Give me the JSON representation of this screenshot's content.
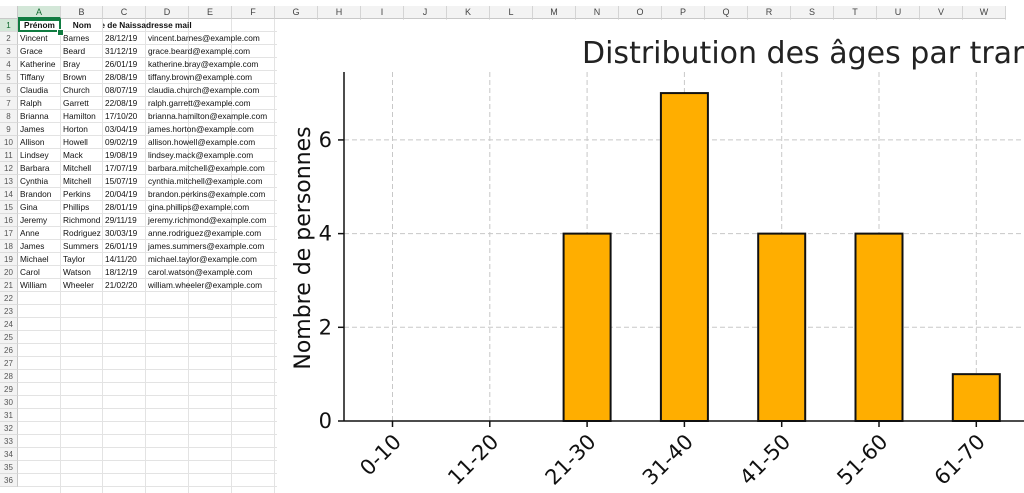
{
  "sheet": {
    "columns": [
      "A",
      "B",
      "C",
      "D",
      "E",
      "F",
      "G",
      "H",
      "I",
      "J",
      "K",
      "L",
      "M",
      "N",
      "O",
      "P",
      "Q",
      "R",
      "S",
      "T",
      "U",
      "V",
      "W"
    ],
    "selected_column": "A",
    "header": [
      "Prénom",
      "Nom",
      "e de Naissa",
      "dresse mail"
    ],
    "rows": [
      [
        "Vincent",
        "Barnes",
        "28/12/19",
        "vincent.barnes@example.com"
      ],
      [
        "Grace",
        "Beard",
        "31/12/19",
        "grace.beard@example.com"
      ],
      [
        "Katherine",
        "Bray",
        "26/01/19",
        "katherine.bray@example.com"
      ],
      [
        "Tiffany",
        "Brown",
        "28/08/19",
        "tiffany.brown@example.com"
      ],
      [
        "Claudia",
        "Church",
        "08/07/19",
        "claudia.church@example.com"
      ],
      [
        "Ralph",
        "Garrett",
        "22/08/19",
        "ralph.garrett@example.com"
      ],
      [
        "Brianna",
        "Hamilton",
        "17/10/20",
        "brianna.hamilton@example.com"
      ],
      [
        "James",
        "Horton",
        "03/04/19",
        "james.horton@example.com"
      ],
      [
        "Allison",
        "Howell",
        "09/02/19",
        "allison.howell@example.com"
      ],
      [
        "Lindsey",
        "Mack",
        "19/08/19",
        "lindsey.mack@example.com"
      ],
      [
        "Barbara",
        "Mitchell",
        "17/07/19",
        "barbara.mitchell@example.com"
      ],
      [
        "Cynthia",
        "Mitchell",
        "15/07/19",
        "cynthia.mitchell@example.com"
      ],
      [
        "Brandon",
        "Perkins",
        "20/04/19",
        "brandon.perkins@example.com"
      ],
      [
        "Gina",
        "Phillips",
        "28/01/19",
        "gina.phillips@example.com"
      ],
      [
        "Jeremy",
        "Richmond",
        "29/11/19",
        "jeremy.richmond@example.com"
      ],
      [
        "Anne",
        "Rodriguez",
        "30/03/19",
        "anne.rodriguez@example.com"
      ],
      [
        "James",
        "Summers",
        "26/01/19",
        "james.summers@example.com"
      ],
      [
        "Michael",
        "Taylor",
        "14/11/20",
        "michael.taylor@example.com"
      ],
      [
        "Carol",
        "Watson",
        "18/12/19",
        "carol.watson@example.com"
      ],
      [
        "William",
        "Wheeler",
        "21/02/20",
        "william.wheeler@example.com"
      ]
    ],
    "row_numbers": [
      "1",
      "2",
      "3",
      "4",
      "5",
      "6",
      "7",
      "8",
      "9",
      "10",
      "11",
      "12",
      "13",
      "14",
      "15",
      "16",
      "17",
      "18",
      "19",
      "20",
      "21",
      "22",
      "23",
      "24",
      "25",
      "26",
      "27",
      "28",
      "29",
      "30",
      "31",
      "32",
      "33",
      "34",
      "35",
      "36"
    ]
  },
  "chart_data": {
    "type": "bar",
    "title": "Distribution des âges par tran",
    "xlabel": "",
    "ylabel": "Nombre de personnes",
    "categories": [
      "0-10",
      "11-20",
      "21-30",
      "31-40",
      "41-50",
      "51-60",
      "61-70"
    ],
    "values": [
      0,
      0,
      4,
      7,
      4,
      4,
      1
    ],
    "yticks": [
      "0",
      "2",
      "4",
      "6"
    ],
    "ylim": [
      0,
      7.45
    ],
    "grid": true,
    "bar_color": "#ffae00",
    "edge_color": "#111111"
  }
}
